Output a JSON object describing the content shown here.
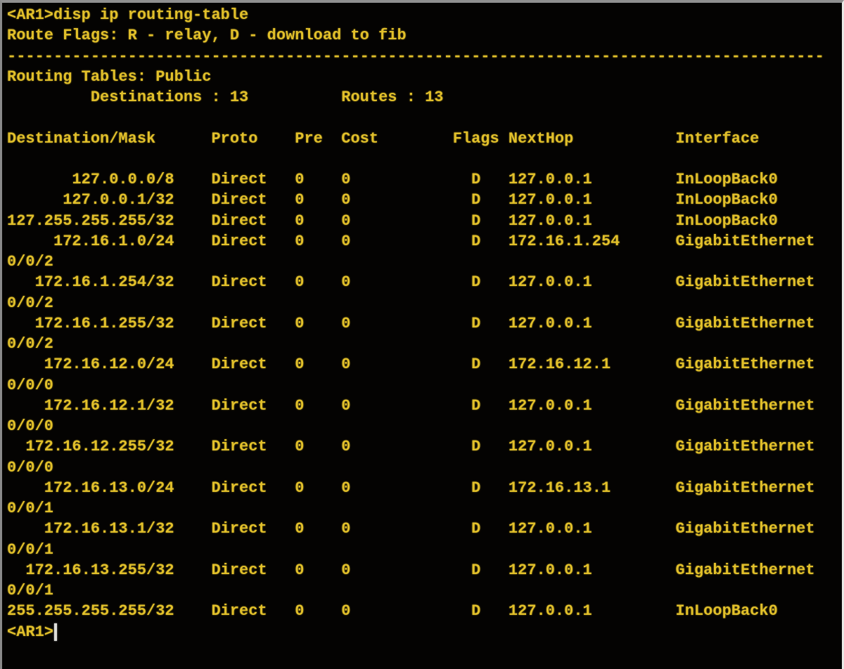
{
  "terminal": {
    "prompt": "<AR1>",
    "command": "disp ip routing-table",
    "route_flags_line": "Route Flags: R - relay, D - download to fib",
    "separator_char": "-",
    "separator_length": 88,
    "routing_tables": {
      "label": "Routing Tables:",
      "value": "Public"
    },
    "summary": {
      "destinations_label": "Destinations",
      "destinations": "13",
      "routes_label": "Routes",
      "routes": "13"
    },
    "columns": [
      "Destination/Mask",
      "Proto",
      "Pre",
      "Cost",
      "Flags",
      "NextHop",
      "Interface"
    ],
    "routes": [
      {
        "destination": "127.0.0.0/8",
        "proto": "Direct",
        "pre": "0",
        "cost": "0",
        "flags": "D",
        "nexthop": "127.0.0.1",
        "interface": "InLoopBack0",
        "interface_wrap": ""
      },
      {
        "destination": "127.0.0.1/32",
        "proto": "Direct",
        "pre": "0",
        "cost": "0",
        "flags": "D",
        "nexthop": "127.0.0.1",
        "interface": "InLoopBack0",
        "interface_wrap": ""
      },
      {
        "destination": "127.255.255.255/32",
        "proto": "Direct",
        "pre": "0",
        "cost": "0",
        "flags": "D",
        "nexthop": "127.0.0.1",
        "interface": "InLoopBack0",
        "interface_wrap": ""
      },
      {
        "destination": "172.16.1.0/24",
        "proto": "Direct",
        "pre": "0",
        "cost": "0",
        "flags": "D",
        "nexthop": "172.16.1.254",
        "interface": "GigabitEthernet",
        "interface_wrap": "0/0/2"
      },
      {
        "destination": "172.16.1.254/32",
        "proto": "Direct",
        "pre": "0",
        "cost": "0",
        "flags": "D",
        "nexthop": "127.0.0.1",
        "interface": "GigabitEthernet",
        "interface_wrap": "0/0/2"
      },
      {
        "destination": "172.16.1.255/32",
        "proto": "Direct",
        "pre": "0",
        "cost": "0",
        "flags": "D",
        "nexthop": "127.0.0.1",
        "interface": "GigabitEthernet",
        "interface_wrap": "0/0/2"
      },
      {
        "destination": "172.16.12.0/24",
        "proto": "Direct",
        "pre": "0",
        "cost": "0",
        "flags": "D",
        "nexthop": "172.16.12.1",
        "interface": "GigabitEthernet",
        "interface_wrap": "0/0/0"
      },
      {
        "destination": "172.16.12.1/32",
        "proto": "Direct",
        "pre": "0",
        "cost": "0",
        "flags": "D",
        "nexthop": "127.0.0.1",
        "interface": "GigabitEthernet",
        "interface_wrap": "0/0/0"
      },
      {
        "destination": "172.16.12.255/32",
        "proto": "Direct",
        "pre": "0",
        "cost": "0",
        "flags": "D",
        "nexthop": "127.0.0.1",
        "interface": "GigabitEthernet",
        "interface_wrap": "0/0/0"
      },
      {
        "destination": "172.16.13.0/24",
        "proto": "Direct",
        "pre": "0",
        "cost": "0",
        "flags": "D",
        "nexthop": "172.16.13.1",
        "interface": "GigabitEthernet",
        "interface_wrap": "0/0/1"
      },
      {
        "destination": "172.16.13.1/32",
        "proto": "Direct",
        "pre": "0",
        "cost": "0",
        "flags": "D",
        "nexthop": "127.0.0.1",
        "interface": "GigabitEthernet",
        "interface_wrap": "0/0/1"
      },
      {
        "destination": "172.16.13.255/32",
        "proto": "Direct",
        "pre": "0",
        "cost": "0",
        "flags": "D",
        "nexthop": "127.0.0.1",
        "interface": "GigabitEthernet",
        "interface_wrap": "0/0/1"
      },
      {
        "destination": "255.255.255.255/32",
        "proto": "Direct",
        "pre": "0",
        "cost": "0",
        "flags": "D",
        "nexthop": "127.0.0.1",
        "interface": "InLoopBack0",
        "interface_wrap": ""
      }
    ],
    "final_prompt": "<AR1>"
  },
  "colors": {
    "background": "#040302",
    "text": "#e2c02a",
    "border_top": "#8f8f8f",
    "border_left": "#8a8a8a",
    "border_right": "#e9e9e6",
    "cursor": "#dededa"
  }
}
